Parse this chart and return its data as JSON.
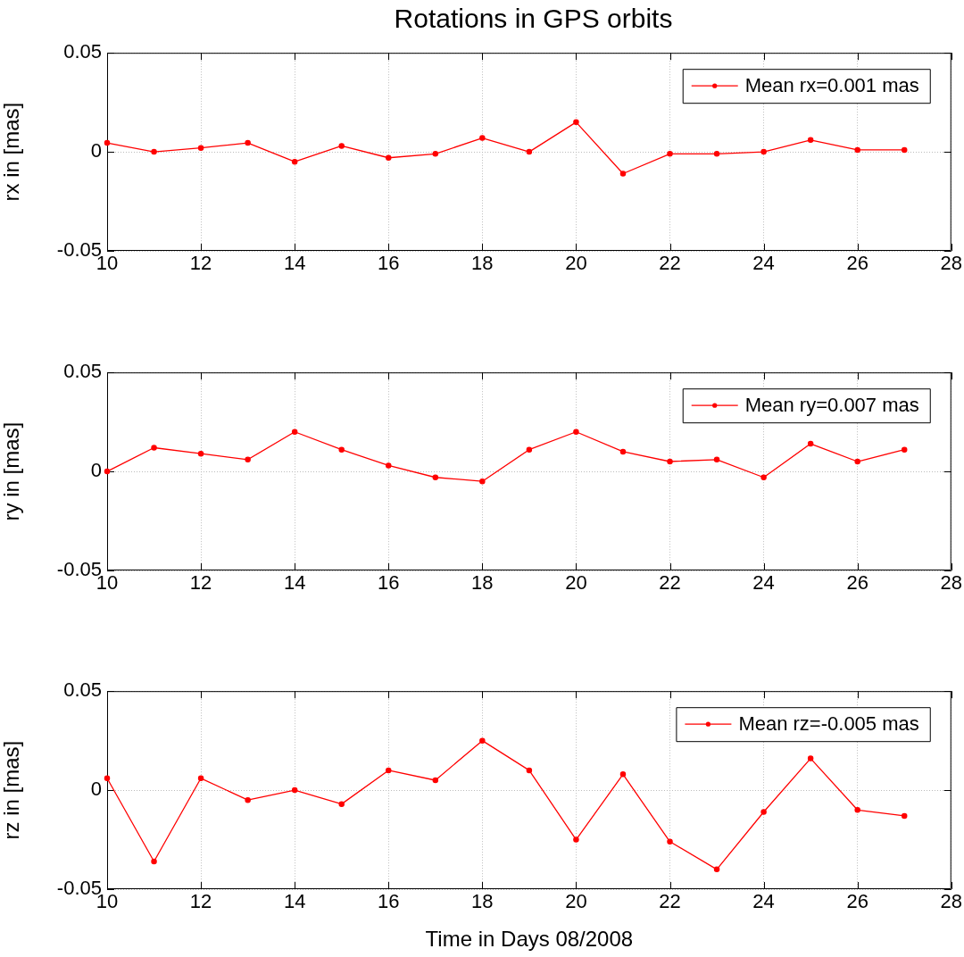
{
  "chart_data": [
    {
      "type": "line",
      "title": "Rotations in GPS orbits",
      "ylabel": "rx in [mas]",
      "x": [
        10,
        11,
        12,
        13,
        14,
        15,
        16,
        17,
        18,
        19,
        20,
        21,
        22,
        23,
        24,
        25,
        26,
        27
      ],
      "series": [
        {
          "name": "Mean rx=0.001 mas",
          "color": "#ff0000",
          "values": [
            0.0045,
            0,
            0.002,
            0.0045,
            -0.005,
            0.003,
            -0.003,
            -0.001,
            0.007,
            0,
            0.015,
            -0.011,
            -0.001,
            -0.001,
            0,
            0.006,
            0.001,
            0.001
          ]
        }
      ],
      "xlim": [
        10,
        28
      ],
      "xticks": [
        10,
        12,
        14,
        16,
        18,
        20,
        22,
        24,
        26,
        28
      ],
      "ylim": [
        -0.05,
        0.05
      ],
      "yticks": [
        -0.05,
        0,
        0.05
      ],
      "grid": true,
      "legend": "top right",
      "marker": "circle",
      "line_style": "solid"
    },
    {
      "type": "line",
      "ylabel": "ry in [mas]",
      "x": [
        10,
        11,
        12,
        13,
        14,
        15,
        16,
        17,
        18,
        19,
        20,
        21,
        22,
        23,
        24,
        25,
        26,
        27
      ],
      "series": [
        {
          "name": "Mean ry=0.007 mas",
          "color": "#ff0000",
          "values": [
            0,
            0.012,
            0.009,
            0.006,
            0.02,
            0.011,
            0.003,
            -0.003,
            -0.005,
            0.011,
            0.02,
            0.01,
            0.005,
            0.006,
            -0.003,
            0.014,
            0.005,
            0.011
          ]
        }
      ],
      "xlim": [
        10,
        28
      ],
      "xticks": [
        10,
        12,
        14,
        16,
        18,
        20,
        22,
        24,
        26,
        28
      ],
      "ylim": [
        -0.05,
        0.05
      ],
      "yticks": [
        -0.05,
        0,
        0.05
      ],
      "grid": true,
      "legend": "top right",
      "marker": "circle",
      "line_style": "solid"
    },
    {
      "type": "line",
      "ylabel": "rz in [mas]",
      "xlabel": "Time in Days 08/2008",
      "x": [
        10,
        11,
        12,
        13,
        14,
        15,
        16,
        17,
        18,
        19,
        20,
        21,
        22,
        23,
        24,
        25,
        26,
        27
      ],
      "series": [
        {
          "name": "Mean rz=-0.005 mas",
          "color": "#ff0000",
          "values": [
            0.006,
            -0.036,
            0.006,
            -0.005,
            0,
            -0.007,
            0.01,
            0.005,
            0.025,
            0.01,
            -0.025,
            0.008,
            -0.026,
            -0.04,
            -0.011,
            0.016,
            -0.01,
            -0.013
          ]
        }
      ],
      "xlim": [
        10,
        28
      ],
      "xticks": [
        10,
        12,
        14,
        16,
        18,
        20,
        22,
        24,
        26,
        28
      ],
      "ylim": [
        -0.05,
        0.05
      ],
      "yticks": [
        -0.05,
        0,
        0.05
      ],
      "grid": true,
      "legend": "top right",
      "marker": "circle",
      "line_style": "solid"
    }
  ]
}
